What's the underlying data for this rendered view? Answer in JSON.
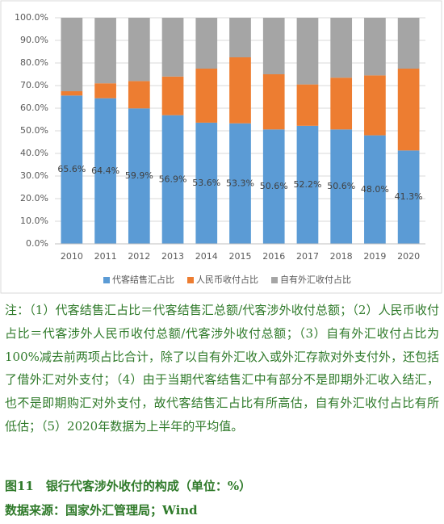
{
  "chart_data": {
    "type": "stacked_bar",
    "categories": [
      "2010",
      "2011",
      "2012",
      "2013",
      "2014",
      "2015",
      "2016",
      "2017",
      "2018",
      "2019",
      "2020"
    ],
    "series": [
      {
        "name": "代客结售汇占比",
        "color": "#5b9bd5",
        "values": [
          65.6,
          64.4,
          59.9,
          56.9,
          53.6,
          53.3,
          50.6,
          52.2,
          50.6,
          48.0,
          41.3
        ],
        "value_labels": [
          "65.6%",
          "64.4%",
          "59.9%",
          "56.9%",
          "53.6%",
          "53.3%",
          "50.6%",
          "52.2%",
          "50.6%",
          "48.0%",
          "41.3%"
        ]
      },
      {
        "name": "人民币收付占比",
        "color": "#ed7d31",
        "values": [
          1.9,
          6.6,
          12.1,
          17.1,
          23.9,
          29.2,
          24.4,
          18.3,
          22.9,
          26.5,
          36.2
        ]
      },
      {
        "name": "自有外汇收付占比",
        "color": "#a5a5a5",
        "values": [
          32.5,
          29.0,
          28.0,
          26.0,
          22.5,
          17.5,
          25.0,
          29.5,
          26.5,
          25.5,
          22.5
        ]
      }
    ],
    "ylim": [
      0,
      100
    ],
    "yticks": [
      {
        "value": 0,
        "label": "0.0%"
      },
      {
        "value": 10,
        "label": "10.0%"
      },
      {
        "value": 20,
        "label": "20.0%"
      },
      {
        "value": 30,
        "label": "30.0%"
      },
      {
        "value": 40,
        "label": "40.0%"
      },
      {
        "value": 50,
        "label": "50.0%"
      },
      {
        "value": 60,
        "label": "60.0%"
      },
      {
        "value": 70,
        "label": "70.0%"
      },
      {
        "value": 80,
        "label": "80.0%"
      },
      {
        "value": 90,
        "label": "90.0%"
      },
      {
        "value": 100,
        "label": "100.0%"
      }
    ],
    "grid": true,
    "legend": "bottom"
  },
  "notes": "注：（1）代客结售汇占比＝代客结售汇总额/代客涉外收付总额；（2）人民币收付占比＝代客涉外人民币收付总额/代客涉外收付总额；（3）自有外汇收付占比为100%减去前两项占比合计，除了以自有外汇收入或外汇存款对外支付外，还包括了借外汇对外支付；（4）由于当期代客结售汇中有部分不是即期外汇收入结汇，也不是即期购汇对外支付，故代客结售汇占比有所高估，自有外汇收付占比有所低估；（5）2020年数据为上半年的平均值。",
  "caption": "图11　银行代客涉外收付的构成（单位：%）",
  "source": "数据来源：国家外汇管理局；Wind"
}
